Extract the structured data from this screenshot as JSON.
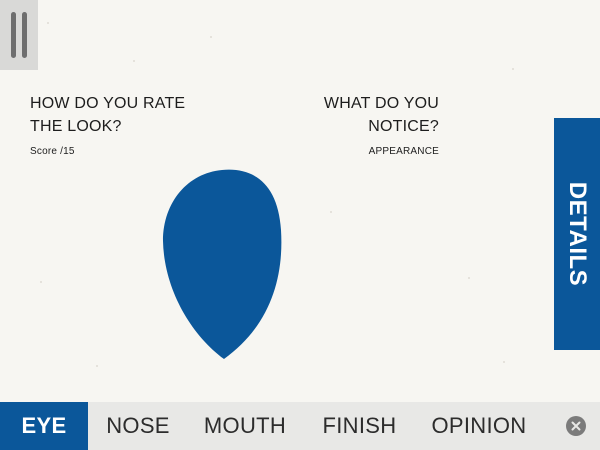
{
  "left_panel": {
    "title": "HOW DO YOU RATE\nTHE LOOK?",
    "subtitle": "Score /15"
  },
  "right_panel": {
    "title": "WHAT DO YOU\nNOTICE?",
    "subtitle": "APPEARANCE"
  },
  "details_tab": {
    "label": "DETAILS"
  },
  "nav": {
    "tabs": [
      {
        "label": "EYE",
        "active": true
      },
      {
        "label": "NOSE",
        "active": false
      },
      {
        "label": "MOUTH",
        "active": false
      },
      {
        "label": "FINISH",
        "active": false
      },
      {
        "label": "OPINION",
        "active": false
      }
    ]
  },
  "icons": {
    "menu": "pause-icon",
    "close": "close-icon"
  },
  "colors": {
    "accent": "#0b579a",
    "background": "#f7f6f2",
    "nav_background": "#e8e8e6",
    "menu_button": "#d9d9d7"
  }
}
